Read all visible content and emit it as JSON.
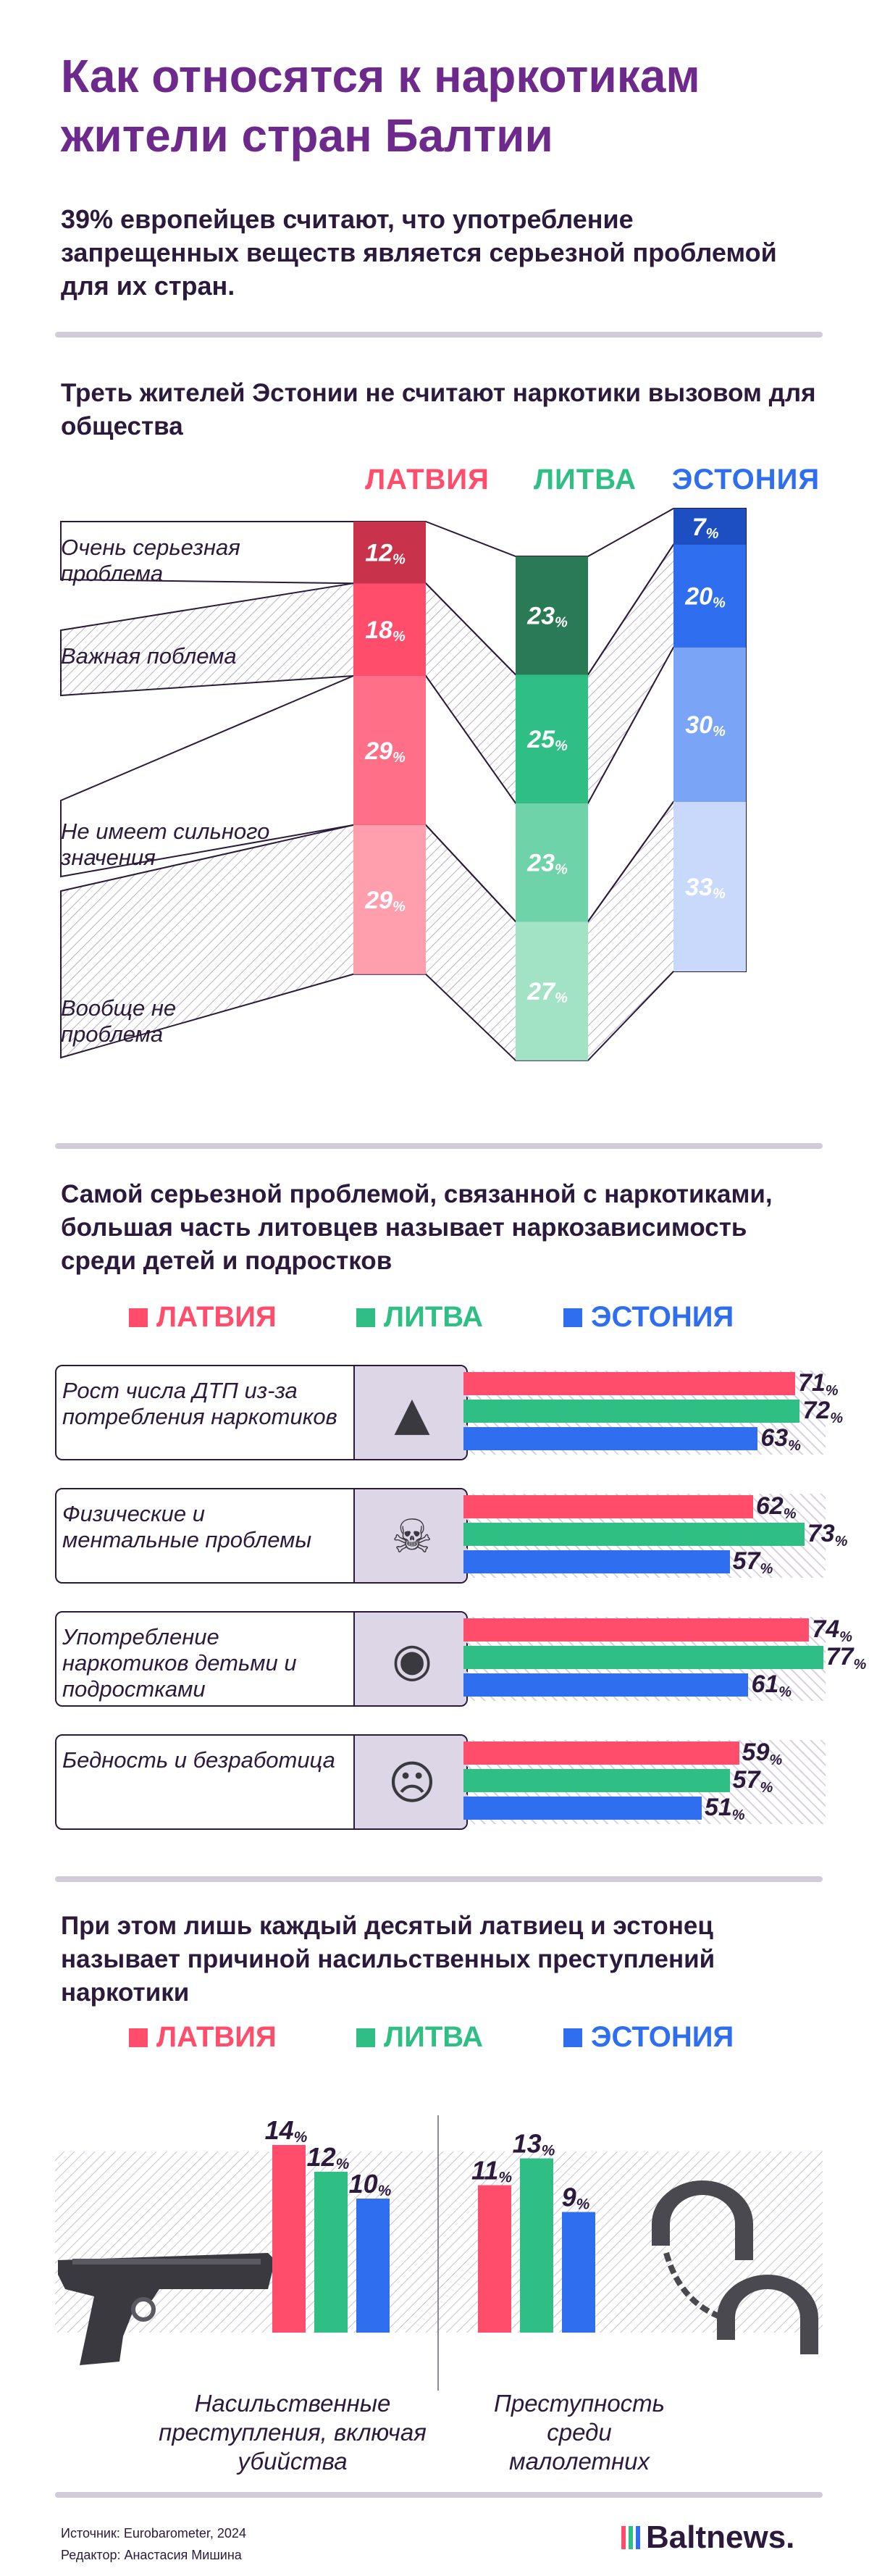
{
  "title": "Как относятся к наркотикам жители стран Балтии",
  "lead": "39% европейцев считают, что употребление запрещенных веществ является серьезной проблемой для их стран.",
  "colors": {
    "latvia": "#ff4d6b",
    "lithuania": "#2fbf84",
    "estonia": "#2f6fef",
    "purple": "#6d2a8c"
  },
  "section1": {
    "title": "Треть жителей Эстонии не считают наркотики вызовом для общества",
    "countries": [
      "ЛАТВИЯ",
      "ЛИТВА",
      "ЭСТОНИЯ"
    ],
    "categories": [
      "Очень серьезная проблема",
      "Важная поблема",
      "Не имеет сильного значения",
      "Вообще не проблема"
    ],
    "percent_sign": "%"
  },
  "section2": {
    "title": "Самой серьезной проблемой, связанной с наркотиками, большая часть литовцев называет наркозависимость среди детей и подростков",
    "legend": [
      "ЛАТВИЯ",
      "ЛИТВА",
      "ЭСТОНИЯ"
    ],
    "items": [
      {
        "label": "Рост числа ДТП из-за потребления наркотиков",
        "icon": "car-fire-icon"
      },
      {
        "label": "Физические и ментальные проблемы",
        "icon": "sick-person-icon"
      },
      {
        "label": "Употребление наркотиков детьми и подростками",
        "icon": "pill-bottle-icon"
      },
      {
        "label": "Бедность и безработица",
        "icon": "sad-person-icon"
      }
    ]
  },
  "section3": {
    "title": "При этом лишь каждый десятый латвиец и эстонец называет причиной насильственных преступлений наркотики",
    "legend": [
      "ЛАТВИЯ",
      "ЛИТВА",
      "ЭСТОНИЯ"
    ],
    "groups": [
      "Насильственные преступления, включая убийства",
      "Преступность среди малолетних"
    ],
    "icons": [
      "pistol-icon",
      "handcuffs-icon"
    ]
  },
  "footer": {
    "source": "Источник: Eurobarometer, 2024",
    "editor": "Редактор: Анастасия Мишина",
    "logo": "Baltnews."
  },
  "chart_data": [
    {
      "type": "bar",
      "stacked": true,
      "title": "Треть жителей Эстонии не считают наркотики вызовом для общества",
      "categories": [
        "ЛАТВИЯ",
        "ЛИТВА",
        "ЭСТОНИЯ"
      ],
      "unit": "%",
      "series": [
        {
          "name": "Очень серьезная проблема",
          "values": [
            12,
            23,
            7
          ]
        },
        {
          "name": "Важная поблема",
          "values": [
            18,
            25,
            20
          ]
        },
        {
          "name": "Не имеет сильного значения",
          "values": [
            29,
            23,
            30
          ]
        },
        {
          "name": "Вообще не проблема",
          "values": [
            29,
            27,
            33
          ]
        }
      ]
    },
    {
      "type": "bar",
      "orientation": "horizontal",
      "title": "Самой серьезной проблемой, связанной с наркотиками, большая часть литовцев называет наркозависимость среди детей и подростков",
      "categories": [
        "Рост числа ДТП из-за потребления наркотиков",
        "Физические и ментальные проблемы",
        "Употребление наркотиков детьми и подростками",
        "Бедность и безработица"
      ],
      "unit": "%",
      "series": [
        {
          "name": "ЛАТВИЯ",
          "values": [
            71,
            62,
            74,
            59
          ]
        },
        {
          "name": "ЛИТВА",
          "values": [
            72,
            73,
            77,
            57
          ]
        },
        {
          "name": "ЭСТОНИЯ",
          "values": [
            63,
            57,
            61,
            51
          ]
        }
      ]
    },
    {
      "type": "bar",
      "title": "При этом лишь каждый десятый латвиец и эстонец называет причиной насильственных преступлений наркотики",
      "categories": [
        "Насильственные преступления, включая убийства",
        "Преступность среди малолетних"
      ],
      "unit": "%",
      "series": [
        {
          "name": "ЛАТВИЯ",
          "values": [
            14,
            11
          ]
        },
        {
          "name": "ЛИТВА",
          "values": [
            12,
            13
          ]
        },
        {
          "name": "ЭСТОНИЯ",
          "values": [
            10,
            9
          ]
        }
      ]
    }
  ]
}
